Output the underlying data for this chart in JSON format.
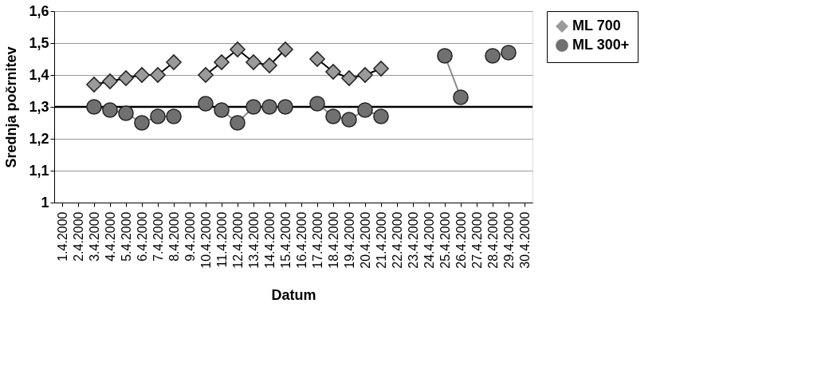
{
  "chart_data": {
    "type": "line",
    "xlabel": "Datum",
    "ylabel": "Srednja počrnitev",
    "categories": [
      "1.4.2000",
      "2.4.2000",
      "3.4.2000",
      "4.4.2000",
      "5.4.2000",
      "6.4.2000",
      "7.4.2000",
      "8.4.2000",
      "9.4.2000",
      "10.4.2000",
      "11.4.2000",
      "12.4.2000",
      "13.4.2000",
      "14.4.2000",
      "15.4.2000",
      "16.4.2000",
      "17.4.2000",
      "18.4.2000",
      "19.4.2000",
      "20.4.2000",
      "21.4.2000",
      "22.4.2000",
      "23.4.2000",
      "24.4.2000",
      "25.4.2000",
      "26.4.2000",
      "27.4.2000",
      "28.4.2000",
      "29.4.2000",
      "30.4.2000"
    ],
    "series": [
      {
        "name": "ML 700",
        "color": "#9a9a9a",
        "marker": "diamond",
        "values": [
          null,
          null,
          1.37,
          1.38,
          1.39,
          1.4,
          1.4,
          1.44,
          null,
          1.4,
          1.44,
          1.48,
          1.44,
          1.43,
          1.48,
          null,
          1.45,
          1.41,
          1.39,
          1.4,
          1.42,
          null,
          null,
          null,
          null,
          null,
          null,
          null,
          null,
          null
        ]
      },
      {
        "name": "ML 300+",
        "color": "#707070",
        "marker": "circle",
        "values": [
          null,
          null,
          1.3,
          1.29,
          1.28,
          1.25,
          1.27,
          1.27,
          null,
          1.31,
          1.29,
          1.25,
          1.3,
          1.3,
          1.3,
          null,
          1.31,
          1.27,
          1.26,
          1.29,
          1.27,
          null,
          null,
          null,
          1.46,
          1.33,
          null,
          1.46,
          1.47,
          null
        ]
      }
    ],
    "ylim": [
      1,
      1.6
    ],
    "yticks": [
      {
        "value": 1,
        "label": "1"
      },
      {
        "value": 1.1,
        "label": "1,1"
      },
      {
        "value": 1.2,
        "label": "1,2"
      },
      {
        "value": 1.3,
        "label": "1,3"
      },
      {
        "value": 1.4,
        "label": "1,4"
      },
      {
        "value": 1.5,
        "label": "1,5"
      },
      {
        "value": 1.6,
        "label": "1,6"
      }
    ],
    "ref_lines": [
      {
        "axis": "y",
        "value": 1.3,
        "color": "#000000"
      }
    ],
    "grid": "y",
    "legend": "right"
  }
}
